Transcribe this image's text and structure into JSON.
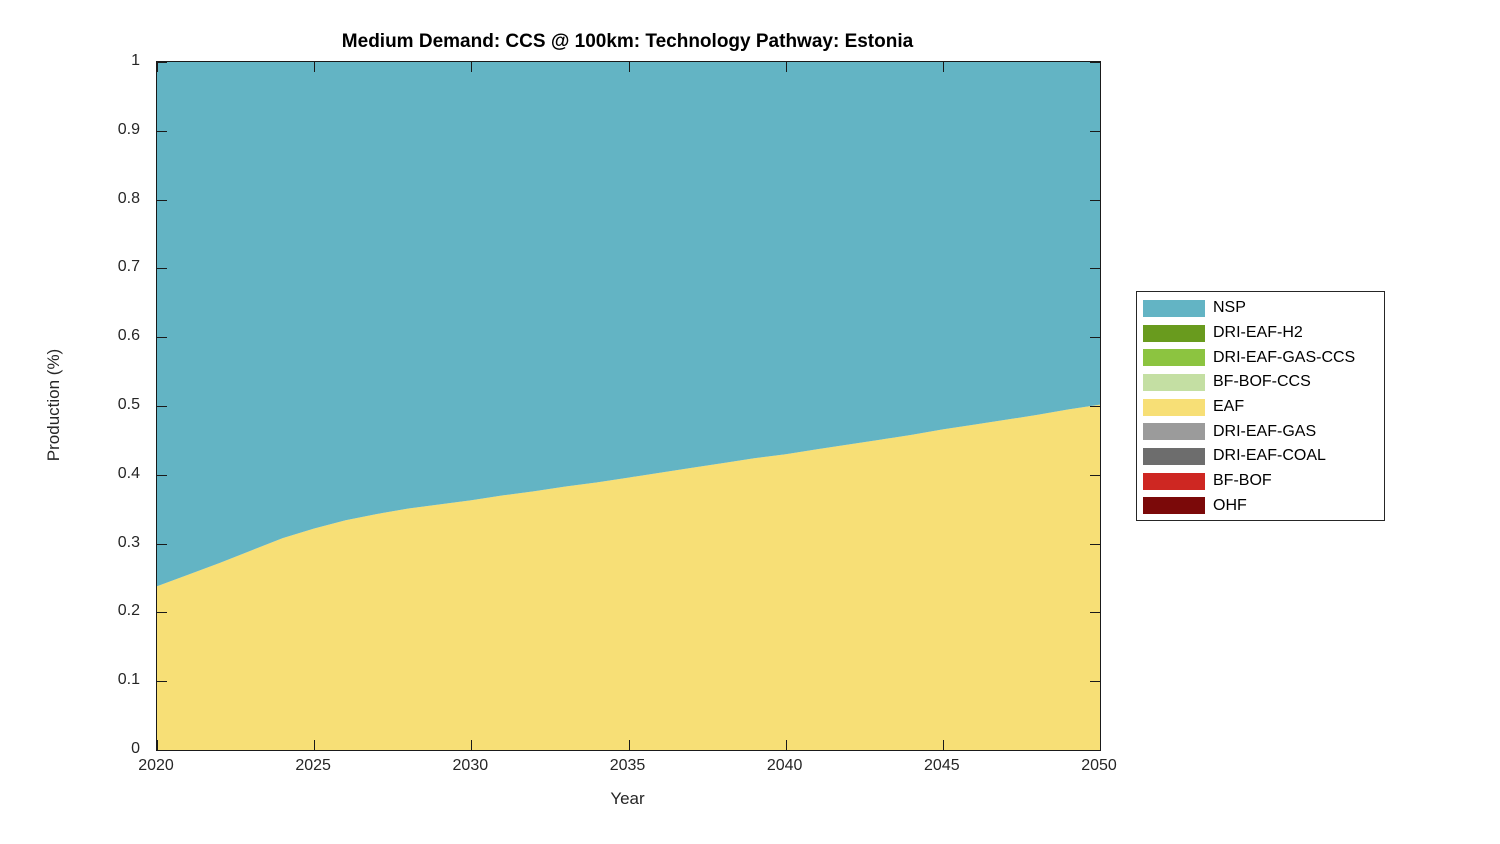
{
  "chart_data": {
    "type": "area",
    "stacked": true,
    "title": "Medium Demand: CCS @ 100km: Technology Pathway: Estonia",
    "xlabel": "Year",
    "ylabel": "Production (%)",
    "xlim": [
      2020,
      2050
    ],
    "ylim": [
      0,
      1
    ],
    "grid": false,
    "legend_position": "outside-right",
    "x_ticks": {
      "values": [
        2020,
        2025,
        2030,
        2035,
        2040,
        2045,
        2050
      ],
      "labels": [
        "2020",
        "2025",
        "2030",
        "2035",
        "2040",
        "2045",
        "2050"
      ]
    },
    "y_ticks": {
      "values": [
        0,
        0.1,
        0.2,
        0.3,
        0.4,
        0.5,
        0.6,
        0.7,
        0.8,
        0.9,
        1
      ],
      "labels": [
        "0",
        "0.1",
        "0.2",
        "0.3",
        "0.4",
        "0.5",
        "0.6",
        "0.7",
        "0.8",
        "0.9",
        "1"
      ]
    },
    "x": [
      2020,
      2021,
      2022,
      2023,
      2024,
      2025,
      2026,
      2027,
      2028,
      2029,
      2030,
      2031,
      2032,
      2033,
      2034,
      2035,
      2036,
      2037,
      2038,
      2039,
      2040,
      2041,
      2042,
      2043,
      2044,
      2045,
      2046,
      2047,
      2048,
      2049,
      2050
    ],
    "values_note": "values null = constant 0 share (series listed in legend but not visible)",
    "series": [
      {
        "name": "NSP",
        "color": "#63B4C4",
        "values": [
          0.762,
          0.745,
          0.728,
          0.71,
          0.692,
          0.678,
          0.666,
          0.657,
          0.649,
          0.643,
          0.637,
          0.63,
          0.624,
          0.617,
          0.611,
          0.604,
          0.597,
          0.59,
          0.583,
          0.576,
          0.57,
          0.563,
          0.556,
          0.549,
          0.542,
          0.534,
          0.527,
          0.52,
          0.513,
          0.505,
          0.498
        ]
      },
      {
        "name": "DRI-EAF-H2",
        "color": "#699B1E",
        "values": null
      },
      {
        "name": "DRI-EAF-GAS-CCS",
        "color": "#8CC440",
        "values": null
      },
      {
        "name": "BF-BOF-CCS",
        "color": "#C4DFA3",
        "values": null
      },
      {
        "name": "EAF",
        "color": "#F7DF76",
        "values": [
          0.238,
          0.255,
          0.272,
          0.29,
          0.308,
          0.322,
          0.334,
          0.343,
          0.351,
          0.357,
          0.363,
          0.37,
          0.376,
          0.383,
          0.389,
          0.396,
          0.403,
          0.41,
          0.417,
          0.424,
          0.43,
          0.437,
          0.444,
          0.451,
          0.458,
          0.466,
          0.473,
          0.48,
          0.487,
          0.495,
          0.502
        ]
      },
      {
        "name": "DRI-EAF-GAS",
        "color": "#9B9B9B",
        "values": null
      },
      {
        "name": "DRI-EAF-COAL",
        "color": "#6D6D6D",
        "values": null
      },
      {
        "name": "BF-BOF",
        "color": "#CE2722",
        "values": null
      },
      {
        "name": "OHF",
        "color": "#7B0909",
        "values": null
      }
    ]
  }
}
